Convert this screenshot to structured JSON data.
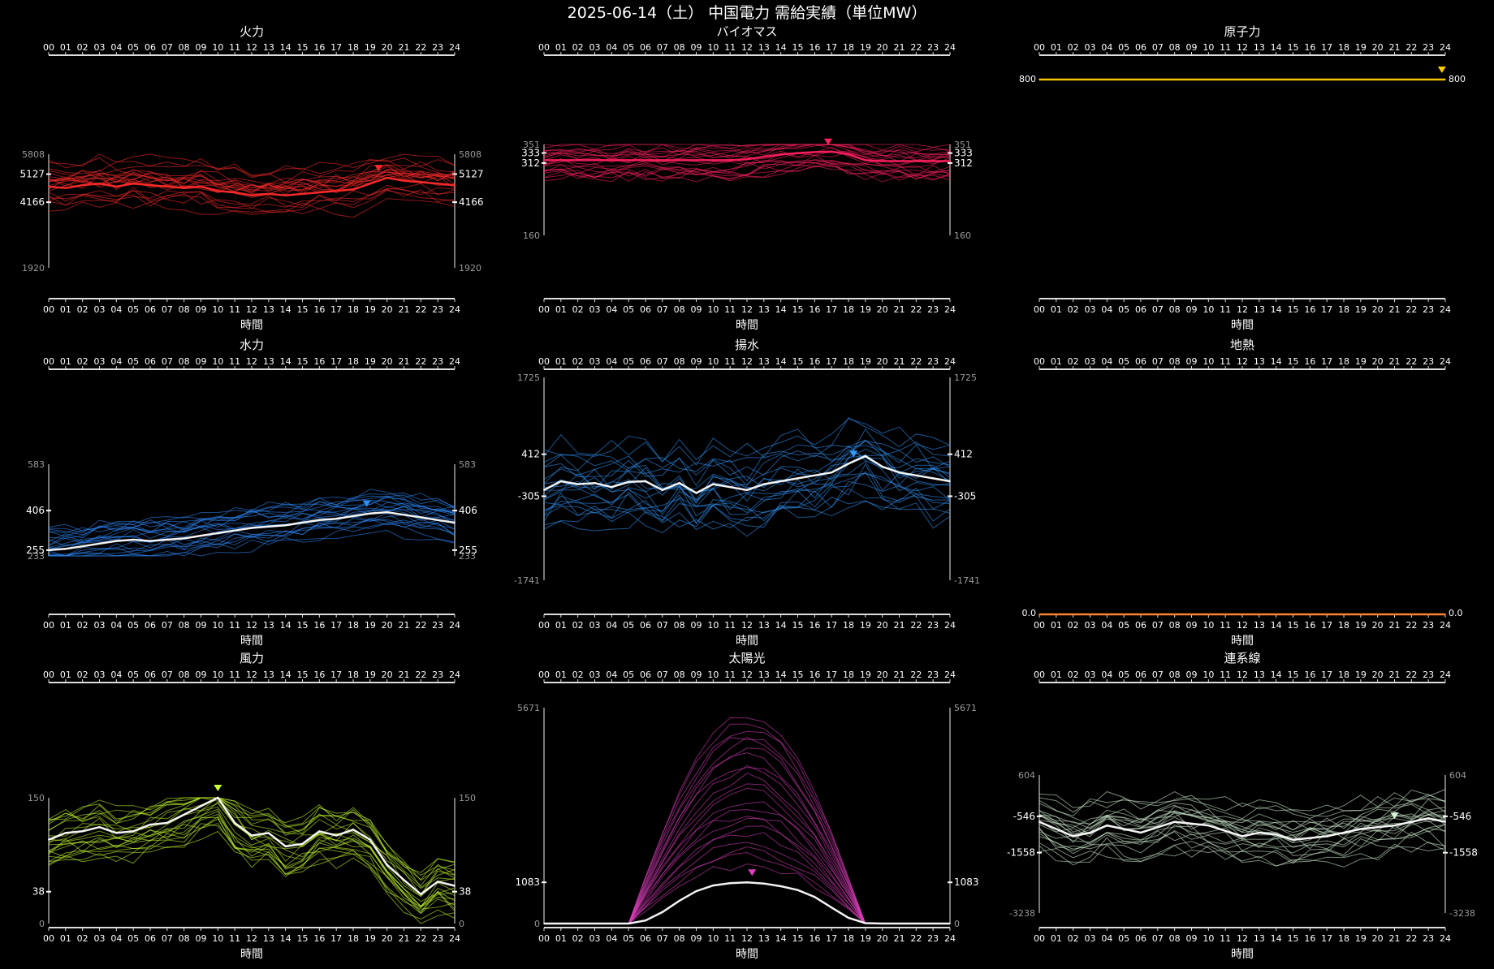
{
  "page_title": "2025-06-14（土） 中国電力 需給実績（単位MW）",
  "hours": [
    "00",
    "01",
    "02",
    "03",
    "04",
    "05",
    "06",
    "07",
    "08",
    "09",
    "10",
    "11",
    "12",
    "13",
    "14",
    "15",
    "16",
    "17",
    "18",
    "19",
    "20",
    "21",
    "22",
    "23",
    "24"
  ],
  "time_label": "時間",
  "chart_data": [
    {
      "type": "line",
      "title": "火力",
      "color": "#ff2b2b",
      "ylim": [
        1920,
        5808
      ],
      "tick_labels": {
        "min": "1920",
        "max": "5808",
        "mid1": "4166",
        "mid2": "5127"
      },
      "series": [
        {
          "values": [
            4700,
            4650,
            4750,
            4800,
            4700,
            4800,
            4750,
            4700,
            4650,
            4700,
            4550,
            4500,
            4400,
            4450,
            4400,
            4450,
            4500,
            4550,
            4600,
            4800,
            5000,
            4900,
            4850,
            4800,
            4750
          ]
        }
      ],
      "peak_marker_hour": 19.5
    },
    {
      "type": "line",
      "title": "バイオマス",
      "color": "#ff2060",
      "ylim": [
        160,
        351
      ],
      "tick_labels": {
        "min": "160",
        "max": "351",
        "mid1": "312",
        "mid2": "333"
      },
      "series": [
        {
          "values": [
            318,
            318,
            318,
            318,
            318,
            318,
            318,
            318,
            318,
            318,
            318,
            318,
            320,
            325,
            330,
            333,
            335,
            336,
            330,
            318,
            316,
            316,
            316,
            316,
            316
          ]
        }
      ],
      "peak_marker_hour": 16.8
    },
    {
      "type": "line",
      "title": "原子力",
      "color": "#ffcc00",
      "ylim": [
        799,
        801
      ],
      "tick_labels": {
        "left": "800",
        "right": "800"
      },
      "series": [
        {
          "values": [
            800,
            800,
            800,
            800,
            800,
            800,
            800,
            800,
            800,
            800,
            800,
            800,
            800,
            800,
            800,
            800,
            800,
            800,
            800,
            800,
            800,
            800,
            800,
            800,
            800
          ]
        }
      ],
      "peak_marker_hour": 23.8
    },
    {
      "type": "line",
      "title": "水力",
      "color": "#2f8cff",
      "ylim": [
        233,
        583
      ],
      "tick_labels": {
        "min": "233",
        "max": "583",
        "mid1": "255",
        "mid2": "406"
      },
      "series": [
        {
          "values": [
            255,
            260,
            270,
            280,
            290,
            295,
            290,
            295,
            300,
            310,
            320,
            330,
            340,
            345,
            350,
            360,
            370,
            375,
            385,
            395,
            400,
            390,
            380,
            370,
            360
          ]
        }
      ],
      "peak_marker_hour": 18.8
    },
    {
      "type": "line",
      "title": "揚水",
      "color": "#3399ff",
      "ylim": [
        -1741,
        1725
      ],
      "tick_labels": {
        "min": "-1741",
        "max": "1725",
        "mid1": "-305",
        "mid2": "412"
      },
      "series": [
        {
          "values": [
            -200,
            -50,
            -100,
            -80,
            -150,
            -60,
            -50,
            -200,
            -80,
            -250,
            -100,
            -150,
            -200,
            -100,
            -50,
            0,
            50,
            100,
            250,
            380,
            200,
            100,
            50,
            0,
            -50
          ]
        }
      ],
      "peak_marker_hour": 18.3
    },
    {
      "type": "line",
      "title": "地熱",
      "color": "#ff7f2a",
      "ylim": [
        0,
        1
      ],
      "tick_labels": {
        "left": "0.0",
        "right": "0.0"
      },
      "series": [
        {
          "values": [
            0,
            0,
            0,
            0,
            0,
            0,
            0,
            0,
            0,
            0,
            0,
            0,
            0,
            0,
            0,
            0,
            0,
            0,
            0,
            0,
            0,
            0,
            0,
            0,
            0
          ]
        }
      ],
      "peak_marker_hour": null
    },
    {
      "type": "line",
      "title": "風力",
      "color": "#c8ff30",
      "ylim": [
        0,
        150
      ],
      "tick_labels": {
        "min": "0",
        "max": "150",
        "mid1": "38"
      },
      "series": [
        {
          "values": [
            100,
            108,
            110,
            115,
            108,
            110,
            118,
            120,
            130,
            140,
            150,
            120,
            105,
            108,
            92,
            95,
            110,
            105,
            112,
            100,
            70,
            52,
            35,
            50,
            45
          ]
        }
      ],
      "peak_marker_hour": 10
    },
    {
      "type": "line",
      "title": "太陽光",
      "color": "#e040c0",
      "ylim": [
        0,
        5671
      ],
      "tick_labels": {
        "min": "0",
        "max": "5671",
        "mid1": "1083"
      },
      "series": [
        {
          "values": [
            0,
            0,
            0,
            0,
            0,
            0,
            80,
            300,
            600,
            850,
            1000,
            1060,
            1083,
            1050,
            980,
            880,
            700,
            420,
            150,
            10,
            0,
            0,
            0,
            0,
            0
          ]
        }
      ],
      "peak_marker_hour": 12.3
    },
    {
      "type": "line",
      "title": "連系線",
      "color": "#d8f5d8",
      "ylim": [
        -3238,
        604
      ],
      "tick_labels": {
        "min": "-3238",
        "max": "604",
        "mid1": "-1558",
        "mid2": "-546"
      },
      "series": [
        {
          "values": [
            -700,
            -900,
            -1100,
            -1000,
            -800,
            -900,
            -1000,
            -850,
            -700,
            -750,
            -800,
            -950,
            -1100,
            -1000,
            -1050,
            -1200,
            -1150,
            -1100,
            -1000,
            -900,
            -850,
            -800,
            -700,
            -600,
            -700
          ]
        }
      ],
      "peak_marker_hour": 21
    }
  ]
}
